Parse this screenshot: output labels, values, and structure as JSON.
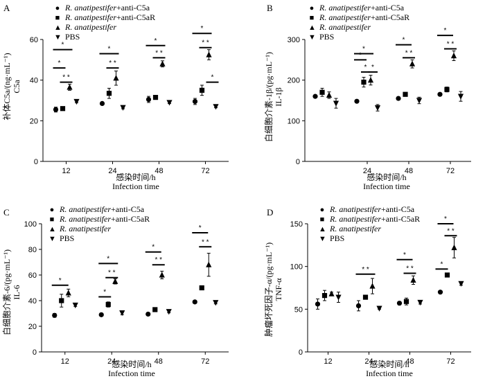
{
  "figure": {
    "legend_items": [
      {
        "marker": "circle",
        "name_italic": "R. anatipestifer",
        "suffix": "+anti-C5a"
      },
      {
        "marker": "square",
        "name_italic": "R. anatipestifer",
        "suffix": "+anti-C5aR"
      },
      {
        "marker": "triangle-up",
        "name_italic": "R. anatipestifer",
        "suffix": ""
      },
      {
        "marker": "triangle-down",
        "name_italic": "",
        "suffix": "PBS"
      }
    ],
    "xlabel_cn": "感染时间/h",
    "xlabel_en": "Infection time"
  },
  "chart_data": [
    {
      "id": "A",
      "type": "scatter",
      "panel_label": "A",
      "ylabel_cn": "补体C5a/(ng·mL⁻¹)",
      "ylabel_en": "C5a",
      "categories": [
        "12",
        "24",
        "48",
        "72"
      ],
      "ylim": [
        0,
        60
      ],
      "yticks": [
        0,
        20,
        40,
        60
      ],
      "series": [
        {
          "name": "R. anatipestifer+anti-C5a",
          "marker": "circle",
          "values": [
            25.5,
            28.5,
            30.5,
            29.5
          ],
          "errors": [
            1.2,
            0.6,
            1.5,
            1.5
          ]
        },
        {
          "name": "R. anatipestifer+anti-C5aR",
          "marker": "square",
          "values": [
            26,
            33.5,
            31.5,
            35
          ],
          "errors": [
            0.6,
            2.5,
            1.0,
            2.5
          ]
        },
        {
          "name": "R. anatipestifer",
          "marker": "triangle-up",
          "values": [
            36.5,
            41,
            48,
            52.5
          ],
          "errors": [
            1.5,
            3.5,
            1.5,
            2.5
          ]
        },
        {
          "name": "PBS",
          "marker": "triangle-down",
          "values": [
            29.5,
            26.5,
            29,
            27
          ],
          "errors": [
            0.6,
            0.6,
            0.5,
            0.6
          ]
        }
      ],
      "significance": [
        {
          "cat": 0,
          "from": 0,
          "to": 2,
          "y": 55,
          "label": "*"
        },
        {
          "cat": 0,
          "from": 0,
          "to": 1,
          "y": 46,
          "label": "*"
        },
        {
          "cat": 0,
          "from": 1,
          "to": 2,
          "y": 39,
          "label": "* *"
        },
        {
          "cat": 1,
          "from": 0,
          "to": 2,
          "y": 53,
          "label": "*"
        },
        {
          "cat": 1,
          "from": 1,
          "to": 2,
          "y": 46,
          "label": "* *"
        },
        {
          "cat": 2,
          "from": 0,
          "to": 2,
          "y": 57,
          "label": "*"
        },
        {
          "cat": 2,
          "from": 1,
          "to": 2,
          "y": 51,
          "label": "* *"
        },
        {
          "cat": 3,
          "from": 0,
          "to": 2,
          "y": 63,
          "label": "*"
        },
        {
          "cat": 3,
          "from": 1,
          "to": 2,
          "y": 56,
          "label": "* *"
        },
        {
          "cat": 3,
          "from": 2,
          "to": 3,
          "y": 39,
          "label": "*"
        }
      ]
    },
    {
      "id": "B",
      "type": "scatter",
      "panel_label": "B",
      "ylabel_cn": "白细胞介素-1β/(pg·mL⁻¹)",
      "ylabel_en": "IL-1β",
      "categories": [
        "24",
        "48",
        "72"
      ],
      "ylim": [
        0,
        300
      ],
      "yticks": [
        0,
        100,
        200,
        300
      ],
      "leading_group": {
        "values": [
          160,
          170,
          163,
          143
        ],
        "errors": [
          3,
          10,
          8,
          12
        ]
      },
      "series": [
        {
          "name": "R. anatipestifer+anti-C5a",
          "marker": "circle",
          "values": [
            148,
            155,
            165
          ],
          "errors": [
            3,
            3,
            3
          ]
        },
        {
          "name": "R. anatipestifer+anti-C5aR",
          "marker": "square",
          "values": [
            195,
            165,
            177
          ],
          "errors": [
            12,
            4,
            6
          ]
        },
        {
          "name": "R. anatipestifer",
          "marker": "triangle-up",
          "values": [
            200,
            240,
            260
          ],
          "errors": [
            12,
            10,
            12
          ]
        },
        {
          "name": "PBS",
          "marker": "triangle-down",
          "values": [
            132,
            150,
            160
          ],
          "errors": [
            8,
            8,
            12
          ]
        }
      ],
      "significance": [
        {
          "cat": 0,
          "from": 0,
          "to": 2,
          "y": 265,
          "label": "*"
        },
        {
          "cat": 0,
          "from": 0,
          "to": 1,
          "y": 250,
          "label": "*"
        },
        {
          "cat": 0,
          "from": 1,
          "to": 1.5,
          "y": 220,
          "label": "*"
        },
        {
          "cat": 0,
          "from": 2,
          "to": 2.6,
          "y": 220,
          "label": "*"
        },
        {
          "cat": 1,
          "from": 0,
          "to": 1.5,
          "y": 287,
          "label": "*"
        },
        {
          "cat": 1,
          "from": 1,
          "to": 2,
          "y": 255,
          "label": "* *"
        },
        {
          "cat": 2,
          "from": 0,
          "to": 1.5,
          "y": 310,
          "label": "*"
        },
        {
          "cat": 2,
          "from": 1,
          "to": 2,
          "y": 277,
          "label": "* *"
        }
      ]
    },
    {
      "id": "C",
      "type": "scatter",
      "panel_label": "C",
      "ylabel_cn": "白细胞介素-6/(pg·mL⁻¹)",
      "ylabel_en": "IL-6",
      "categories": [
        "12",
        "24",
        "48",
        "72"
      ],
      "ylim": [
        0,
        100
      ],
      "yticks": [
        0,
        20,
        40,
        60,
        80,
        100
      ],
      "series": [
        {
          "name": "R. anatipestifer+anti-C5a",
          "marker": "circle",
          "values": [
            28.5,
            29,
            29.5,
            39
          ],
          "errors": [
            1.5,
            0.5,
            1.0,
            1.0
          ]
        },
        {
          "name": "R. anatipestifer+anti-C5aR",
          "marker": "square",
          "values": [
            40,
            37,
            33,
            50
          ],
          "errors": [
            5,
            2,
            1,
            1
          ]
        },
        {
          "name": "R. anatipestifer",
          "marker": "triangle-up",
          "values": [
            46,
            55,
            60,
            68
          ],
          "errors": [
            3,
            2,
            3,
            9
          ]
        },
        {
          "name": "PBS",
          "marker": "triangle-down",
          "values": [
            36.5,
            30.5,
            31.5,
            38.5
          ],
          "errors": [
            1.0,
            1.5,
            1.0,
            1.0
          ]
        }
      ],
      "significance": [
        {
          "cat": 0,
          "from": 0,
          "to": 1.6,
          "y": 52,
          "label": "*"
        },
        {
          "cat": 1,
          "from": 0,
          "to": 2,
          "y": 69,
          "label": "*"
        },
        {
          "cat": 1,
          "from": 0,
          "to": 1,
          "y": 43,
          "label": "*"
        },
        {
          "cat": 1,
          "from": 1,
          "to": 2,
          "y": 58,
          "label": "* *"
        },
        {
          "cat": 2,
          "from": 0,
          "to": 1.5,
          "y": 78,
          "label": "*"
        },
        {
          "cat": 2,
          "from": 1,
          "to": 2,
          "y": 68,
          "label": "* *"
        },
        {
          "cat": 3,
          "from": 0,
          "to": 1.5,
          "y": 93,
          "label": "*"
        },
        {
          "cat": 3,
          "from": 1,
          "to": 2,
          "y": 82,
          "label": "* *"
        }
      ]
    },
    {
      "id": "D",
      "type": "scatter",
      "panel_label": "D",
      "ylabel_cn": "肿瘤坏死因子-α/(pg·mL⁻¹)",
      "ylabel_en": "TNF-α",
      "categories": [
        "12",
        "24",
        "48",
        "72"
      ],
      "ylim": [
        0,
        150
      ],
      "yticks": [
        0,
        50,
        100,
        150
      ],
      "series": [
        {
          "name": "R. anatipestifer+anti-C5a",
          "marker": "circle",
          "values": [
            56,
            54,
            57,
            70
          ],
          "errors": [
            6,
            6,
            2,
            1
          ]
        },
        {
          "name": "R. anatipestifer+anti-C5aR",
          "marker": "square",
          "values": [
            66,
            64,
            59,
            90
          ],
          "errors": [
            6,
            1,
            4,
            1
          ]
        },
        {
          "name": "R. anatipestifer",
          "marker": "triangle-up",
          "values": [
            68,
            77,
            84,
            122
          ],
          "errors": [
            2,
            9,
            5,
            12
          ]
        },
        {
          "name": "PBS",
          "marker": "triangle-down",
          "values": [
            64,
            51,
            58,
            80
          ],
          "errors": [
            6,
            1,
            2,
            2
          ]
        }
      ],
      "significance": [
        {
          "cat": 1,
          "from": 0,
          "to": 2,
          "y": 91,
          "label": "* *"
        },
        {
          "cat": 2,
          "from": 0,
          "to": 1.5,
          "y": 108,
          "label": "*"
        },
        {
          "cat": 2,
          "from": 1,
          "to": 2,
          "y": 92,
          "label": "* *"
        },
        {
          "cat": 3,
          "from": 0,
          "to": 1.5,
          "y": 150,
          "label": "*"
        },
        {
          "cat": 3,
          "from": 1,
          "to": 2,
          "y": 136,
          "label": "* *"
        },
        {
          "cat": 3,
          "from": -0.3,
          "to": 0.7,
          "y": 97,
          "label": "*"
        }
      ]
    }
  ]
}
